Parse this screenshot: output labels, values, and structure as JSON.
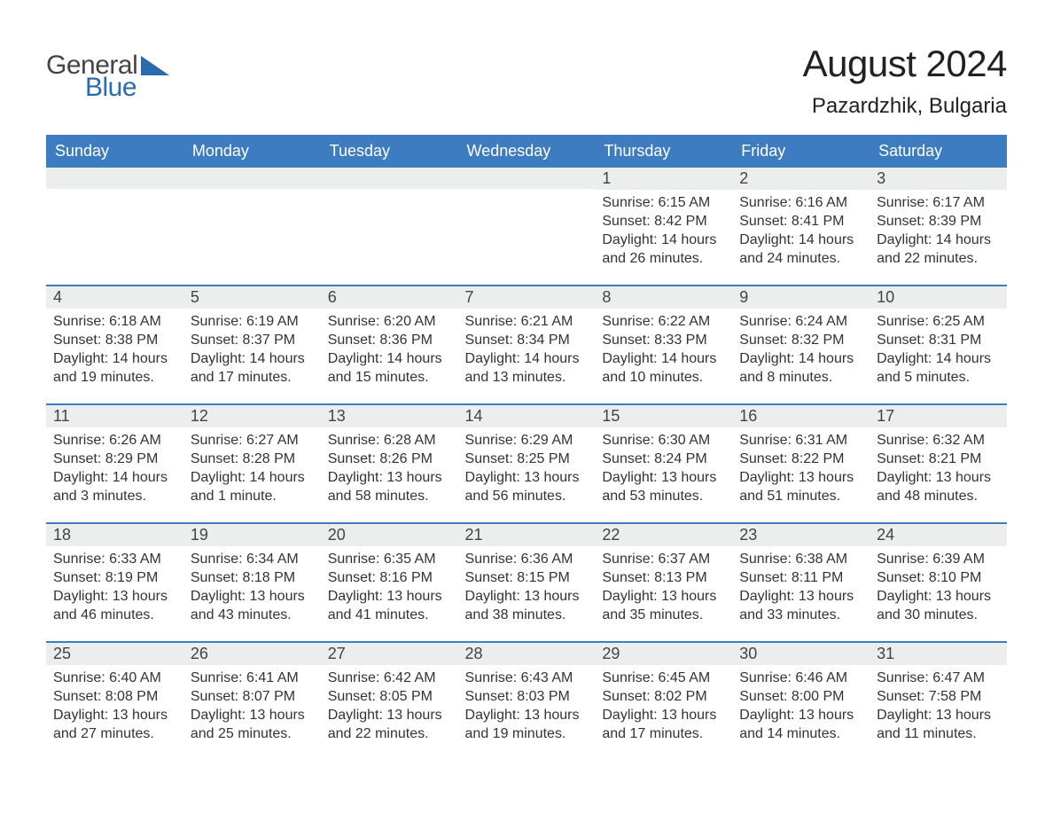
{
  "brand": {
    "word1": "General",
    "word2": "Blue",
    "color_text": "#444444",
    "color_blue": "#2a6bb0",
    "triangle_color": "#2a6bb0"
  },
  "header": {
    "title": "August 2024",
    "location": "Pazardzhik, Bulgaria"
  },
  "styling": {
    "header_bg": "#3d7cc0",
    "header_text": "#ffffff",
    "daynum_bg": "#eceded",
    "row_divider": "#3d7cc0",
    "body_bg": "#ffffff",
    "body_text": "#333333",
    "font_family": "Arial",
    "th_fontsize": 18,
    "daynum_fontsize": 18,
    "body_fontsize": 16,
    "title_fontsize": 42,
    "location_fontsize": 24
  },
  "weekdays": [
    "Sunday",
    "Monday",
    "Tuesday",
    "Wednesday",
    "Thursday",
    "Friday",
    "Saturday"
  ],
  "weeks": [
    [
      null,
      null,
      null,
      null,
      {
        "n": "1",
        "sr": "Sunrise: 6:15 AM",
        "ss": "Sunset: 8:42 PM",
        "dl": "Daylight: 14 hours and 26 minutes."
      },
      {
        "n": "2",
        "sr": "Sunrise: 6:16 AM",
        "ss": "Sunset: 8:41 PM",
        "dl": "Daylight: 14 hours and 24 minutes."
      },
      {
        "n": "3",
        "sr": "Sunrise: 6:17 AM",
        "ss": "Sunset: 8:39 PM",
        "dl": "Daylight: 14 hours and 22 minutes."
      }
    ],
    [
      {
        "n": "4",
        "sr": "Sunrise: 6:18 AM",
        "ss": "Sunset: 8:38 PM",
        "dl": "Daylight: 14 hours and 19 minutes."
      },
      {
        "n": "5",
        "sr": "Sunrise: 6:19 AM",
        "ss": "Sunset: 8:37 PM",
        "dl": "Daylight: 14 hours and 17 minutes."
      },
      {
        "n": "6",
        "sr": "Sunrise: 6:20 AM",
        "ss": "Sunset: 8:36 PM",
        "dl": "Daylight: 14 hours and 15 minutes."
      },
      {
        "n": "7",
        "sr": "Sunrise: 6:21 AM",
        "ss": "Sunset: 8:34 PM",
        "dl": "Daylight: 14 hours and 13 minutes."
      },
      {
        "n": "8",
        "sr": "Sunrise: 6:22 AM",
        "ss": "Sunset: 8:33 PM",
        "dl": "Daylight: 14 hours and 10 minutes."
      },
      {
        "n": "9",
        "sr": "Sunrise: 6:24 AM",
        "ss": "Sunset: 8:32 PM",
        "dl": "Daylight: 14 hours and 8 minutes."
      },
      {
        "n": "10",
        "sr": "Sunrise: 6:25 AM",
        "ss": "Sunset: 8:31 PM",
        "dl": "Daylight: 14 hours and 5 minutes."
      }
    ],
    [
      {
        "n": "11",
        "sr": "Sunrise: 6:26 AM",
        "ss": "Sunset: 8:29 PM",
        "dl": "Daylight: 14 hours and 3 minutes."
      },
      {
        "n": "12",
        "sr": "Sunrise: 6:27 AM",
        "ss": "Sunset: 8:28 PM",
        "dl": "Daylight: 14 hours and 1 minute."
      },
      {
        "n": "13",
        "sr": "Sunrise: 6:28 AM",
        "ss": "Sunset: 8:26 PM",
        "dl": "Daylight: 13 hours and 58 minutes."
      },
      {
        "n": "14",
        "sr": "Sunrise: 6:29 AM",
        "ss": "Sunset: 8:25 PM",
        "dl": "Daylight: 13 hours and 56 minutes."
      },
      {
        "n": "15",
        "sr": "Sunrise: 6:30 AM",
        "ss": "Sunset: 8:24 PM",
        "dl": "Daylight: 13 hours and 53 minutes."
      },
      {
        "n": "16",
        "sr": "Sunrise: 6:31 AM",
        "ss": "Sunset: 8:22 PM",
        "dl": "Daylight: 13 hours and 51 minutes."
      },
      {
        "n": "17",
        "sr": "Sunrise: 6:32 AM",
        "ss": "Sunset: 8:21 PM",
        "dl": "Daylight: 13 hours and 48 minutes."
      }
    ],
    [
      {
        "n": "18",
        "sr": "Sunrise: 6:33 AM",
        "ss": "Sunset: 8:19 PM",
        "dl": "Daylight: 13 hours and 46 minutes."
      },
      {
        "n": "19",
        "sr": "Sunrise: 6:34 AM",
        "ss": "Sunset: 8:18 PM",
        "dl": "Daylight: 13 hours and 43 minutes."
      },
      {
        "n": "20",
        "sr": "Sunrise: 6:35 AM",
        "ss": "Sunset: 8:16 PM",
        "dl": "Daylight: 13 hours and 41 minutes."
      },
      {
        "n": "21",
        "sr": "Sunrise: 6:36 AM",
        "ss": "Sunset: 8:15 PM",
        "dl": "Daylight: 13 hours and 38 minutes."
      },
      {
        "n": "22",
        "sr": "Sunrise: 6:37 AM",
        "ss": "Sunset: 8:13 PM",
        "dl": "Daylight: 13 hours and 35 minutes."
      },
      {
        "n": "23",
        "sr": "Sunrise: 6:38 AM",
        "ss": "Sunset: 8:11 PM",
        "dl": "Daylight: 13 hours and 33 minutes."
      },
      {
        "n": "24",
        "sr": "Sunrise: 6:39 AM",
        "ss": "Sunset: 8:10 PM",
        "dl": "Daylight: 13 hours and 30 minutes."
      }
    ],
    [
      {
        "n": "25",
        "sr": "Sunrise: 6:40 AM",
        "ss": "Sunset: 8:08 PM",
        "dl": "Daylight: 13 hours and 27 minutes."
      },
      {
        "n": "26",
        "sr": "Sunrise: 6:41 AM",
        "ss": "Sunset: 8:07 PM",
        "dl": "Daylight: 13 hours and 25 minutes."
      },
      {
        "n": "27",
        "sr": "Sunrise: 6:42 AM",
        "ss": "Sunset: 8:05 PM",
        "dl": "Daylight: 13 hours and 22 minutes."
      },
      {
        "n": "28",
        "sr": "Sunrise: 6:43 AM",
        "ss": "Sunset: 8:03 PM",
        "dl": "Daylight: 13 hours and 19 minutes."
      },
      {
        "n": "29",
        "sr": "Sunrise: 6:45 AM",
        "ss": "Sunset: 8:02 PM",
        "dl": "Daylight: 13 hours and 17 minutes."
      },
      {
        "n": "30",
        "sr": "Sunrise: 6:46 AM",
        "ss": "Sunset: 8:00 PM",
        "dl": "Daylight: 13 hours and 14 minutes."
      },
      {
        "n": "31",
        "sr": "Sunrise: 6:47 AM",
        "ss": "Sunset: 7:58 PM",
        "dl": "Daylight: 13 hours and 11 minutes."
      }
    ]
  ]
}
